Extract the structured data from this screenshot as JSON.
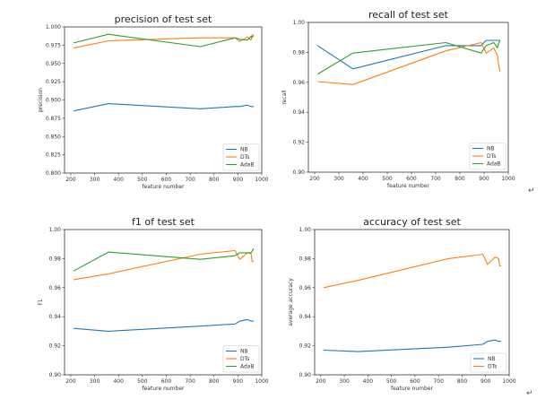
{
  "colors": {
    "NB": "#1f77b4",
    "DTs": "#ff7f0e",
    "AdaB": "#2ca02c"
  },
  "return_mark": "↵",
  "chart_data": [
    {
      "type": "line",
      "title": "precision of test set",
      "xlabel": "feature number",
      "ylabel": "precision",
      "xlim": [
        174,
        1000
      ],
      "ylim": [
        0.8,
        1.0
      ],
      "xticks": [
        200,
        300,
        400,
        500,
        600,
        700,
        800,
        900,
        1000
      ],
      "yticks": [
        "0.800",
        "0.825",
        "0.850",
        "0.875",
        "0.900",
        "0.925",
        "0.950",
        "0.975",
        "1.000"
      ],
      "legend": "lower-right",
      "x": [
        212,
        358,
        742,
        888,
        908,
        940,
        955,
        960,
        966
      ],
      "series": [
        {
          "name": "NB",
          "values": [
            0.885,
            0.895,
            0.888,
            0.891,
            0.891,
            0.893,
            0.891,
            0.891,
            0.891
          ]
        },
        {
          "name": "DTs",
          "values": [
            0.971,
            0.981,
            0.985,
            0.985,
            0.98,
            0.986,
            0.982,
            0.989,
            0.989
          ]
        },
        {
          "name": "AdaB",
          "values": [
            0.978,
            0.99,
            0.973,
            0.985,
            0.983,
            0.982,
            0.987,
            0.986,
            0.988
          ]
        }
      ]
    },
    {
      "type": "line",
      "title": "recall of test set",
      "xlabel": "feature number",
      "ylabel": "recall",
      "xlim": [
        174,
        1000
      ],
      "ylim": [
        0.9,
        1.0
      ],
      "xticks": [
        200,
        300,
        400,
        500,
        600,
        700,
        800,
        900,
        1000
      ],
      "yticks": [
        "0.90",
        "0.92",
        "0.94",
        "0.96",
        "0.98",
        "1.00"
      ],
      "legend": "lower-right",
      "x": [
        212,
        358,
        742,
        888,
        908,
        940,
        955,
        960,
        966
      ],
      "series": [
        {
          "name": "NB",
          "values": [
            0.9845,
            0.969,
            0.9845,
            0.9845,
            0.988,
            0.988,
            0.988,
            0.988,
            0.988
          ]
        },
        {
          "name": "DTs",
          "values": [
            0.9605,
            0.9585,
            0.981,
            0.9865,
            0.9795,
            0.983,
            0.978,
            0.972,
            0.967
          ]
        },
        {
          "name": "AdaB",
          "values": [
            0.9655,
            0.9795,
            0.9865,
            0.9795,
            0.9845,
            0.9865,
            0.983,
            0.986,
            0.988
          ]
        }
      ]
    },
    {
      "type": "line",
      "title": "f1 of test set",
      "xlabel": "feature number",
      "ylabel": "F1",
      "xlim": [
        174,
        1000
      ],
      "ylim": [
        0.9,
        1.0
      ],
      "xticks": [
        200,
        300,
        400,
        500,
        600,
        700,
        800,
        900,
        1000
      ],
      "yticks": [
        "0.90",
        "0.92",
        "0.94",
        "0.96",
        "0.98",
        "1.00"
      ],
      "legend": "lower-right",
      "x": [
        212,
        358,
        742,
        888,
        908,
        940,
        955,
        960,
        966
      ],
      "series": [
        {
          "name": "NB",
          "values": [
            0.932,
            0.93,
            0.9335,
            0.935,
            0.937,
            0.938,
            0.937,
            0.937,
            0.937
          ]
        },
        {
          "name": "DTs",
          "values": [
            0.9655,
            0.9695,
            0.983,
            0.9855,
            0.9795,
            0.984,
            0.9835,
            0.978,
            0.978
          ]
        },
        {
          "name": "AdaB",
          "values": [
            0.9715,
            0.9845,
            0.9795,
            0.982,
            0.984,
            0.984,
            0.984,
            0.985,
            0.987
          ]
        }
      ]
    },
    {
      "type": "line",
      "title": "accuracy of test set",
      "xlabel": "feature number",
      "ylabel": "average accuracy",
      "xlim": [
        174,
        1000
      ],
      "ylim": [
        0.9,
        1.0
      ],
      "xticks": [
        200,
        300,
        400,
        500,
        600,
        700,
        800,
        900,
        1000
      ],
      "yticks": [
        "0.90",
        "0.92",
        "0.94",
        "0.96",
        "0.98",
        "1.00"
      ],
      "legend": "lower-right",
      "x": [
        212,
        358,
        742,
        888,
        908,
        940,
        955,
        960,
        966
      ],
      "series": [
        {
          "name": "NB",
          "values": [
            0.917,
            0.916,
            0.919,
            0.921,
            0.923,
            0.924,
            0.923,
            0.923,
            0.923
          ]
        },
        {
          "name": "DTs",
          "values": [
            0.96,
            0.965,
            0.98,
            0.983,
            0.976,
            0.981,
            0.98,
            0.975,
            0.975
          ]
        }
      ]
    }
  ]
}
